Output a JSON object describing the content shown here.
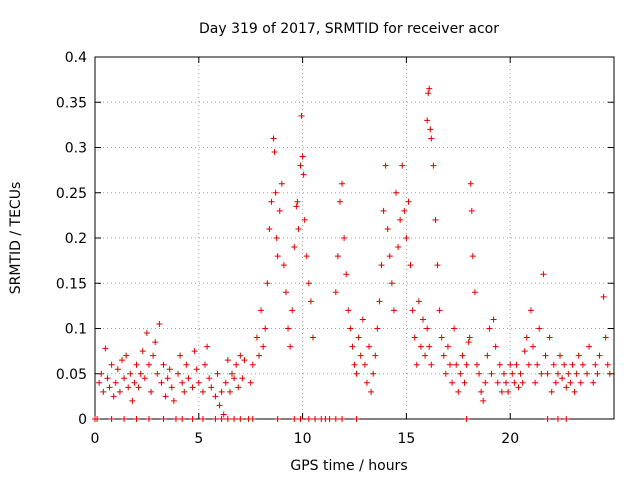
{
  "chart_data": {
    "type": "scatter",
    "title": "Day 319 of 2017, SRMTID for receiver acor",
    "xlabel": "GPS time / hours",
    "ylabel": "SRMTID / TECUs",
    "xlim": [
      0,
      25
    ],
    "ylim": [
      0,
      0.4
    ],
    "x_ticks": [
      0,
      5,
      10,
      15,
      20
    ],
    "x_tick_labels": [
      "0",
      "5",
      "10",
      "15",
      "20"
    ],
    "y_ticks": [
      0,
      0.05,
      0.1,
      0.15,
      0.2,
      0.25,
      0.3,
      0.35,
      0.4
    ],
    "y_tick_labels": [
      "0",
      "0.05",
      "0.1",
      "0.15",
      "0.2",
      "0.25",
      "0.3",
      "0.35",
      "0.4"
    ],
    "grid": true,
    "marker": "+",
    "series_color": "#e00000",
    "series": [
      {
        "name": "SRMTID",
        "points": [
          [
            0.0,
            0.0
          ],
          [
            0.2,
            0.04
          ],
          [
            0.3,
            0.05
          ],
          [
            0.4,
            0.03
          ],
          [
            0.5,
            0.078
          ],
          [
            0.6,
            0.045
          ],
          [
            0.7,
            0.035
          ],
          [
            0.8,
            0.06
          ],
          [
            0.9,
            0.025
          ],
          [
            1.0,
            0.04
          ],
          [
            1.1,
            0.055
          ],
          [
            1.2,
            0.03
          ],
          [
            1.3,
            0.065
          ],
          [
            1.4,
            0.045
          ],
          [
            1.5,
            0.07
          ],
          [
            1.6,
            0.035
          ],
          [
            1.7,
            0.05
          ],
          [
            1.8,
            0.02
          ],
          [
            1.9,
            0.04
          ],
          [
            2.0,
            0.06
          ],
          [
            2.1,
            0.035
          ],
          [
            2.2,
            0.05
          ],
          [
            2.3,
            0.075
          ],
          [
            2.4,
            0.045
          ],
          [
            2.5,
            0.095
          ],
          [
            2.6,
            0.06
          ],
          [
            2.7,
            0.03
          ],
          [
            2.8,
            0.07
          ],
          [
            2.9,
            0.085
          ],
          [
            3.0,
            0.05
          ],
          [
            3.1,
            0.105
          ],
          [
            3.2,
            0.04
          ],
          [
            3.3,
            0.06
          ],
          [
            3.4,
            0.025
          ],
          [
            3.5,
            0.045
          ],
          [
            3.6,
            0.055
          ],
          [
            3.7,
            0.035
          ],
          [
            3.8,
            0.02
          ],
          [
            4.0,
            0.05
          ],
          [
            4.1,
            0.07
          ],
          [
            4.2,
            0.04
          ],
          [
            4.3,
            0.03
          ],
          [
            4.4,
            0.06
          ],
          [
            4.5,
            0.045
          ],
          [
            4.7,
            0.035
          ],
          [
            4.8,
            0.075
          ],
          [
            4.9,
            0.055
          ],
          [
            5.0,
            0.04
          ],
          [
            5.2,
            0.03
          ],
          [
            5.3,
            0.06
          ],
          [
            5.4,
            0.08
          ],
          [
            5.5,
            0.045
          ],
          [
            5.6,
            0.035
          ],
          [
            5.8,
            0.025
          ],
          [
            5.9,
            0.05
          ],
          [
            6.0,
            0.015
          ],
          [
            6.1,
            0.03
          ],
          [
            6.2,
            0.005
          ],
          [
            6.3,
            0.04
          ],
          [
            6.4,
            0.065
          ],
          [
            6.5,
            0.03
          ],
          [
            6.6,
            0.05
          ],
          [
            6.7,
            0.045
          ],
          [
            6.8,
            0.06
          ],
          [
            6.9,
            0.035
          ],
          [
            7.0,
            0.07
          ],
          [
            7.1,
            0.045
          ],
          [
            7.2,
            0.065
          ],
          [
            7.5,
            0.04
          ],
          [
            7.6,
            0.06
          ],
          [
            7.8,
            0.09
          ],
          [
            7.9,
            0.07
          ],
          [
            8.0,
            0.12
          ],
          [
            8.1,
            0.08
          ],
          [
            8.2,
            0.1
          ],
          [
            8.3,
            0.15
          ],
          [
            8.4,
            0.21
          ],
          [
            8.5,
            0.24
          ],
          [
            8.6,
            0.31
          ],
          [
            8.65,
            0.295
          ],
          [
            8.7,
            0.25
          ],
          [
            8.75,
            0.2
          ],
          [
            8.8,
            0.18
          ],
          [
            8.9,
            0.23
          ],
          [
            9.0,
            0.26
          ],
          [
            9.1,
            0.17
          ],
          [
            9.2,
            0.14
          ],
          [
            9.3,
            0.1
          ],
          [
            9.4,
            0.08
          ],
          [
            9.5,
            0.12
          ],
          [
            9.6,
            0.19
          ],
          [
            9.7,
            0.235
          ],
          [
            9.75,
            0.24
          ],
          [
            9.8,
            0.21
          ],
          [
            9.9,
            0.28
          ],
          [
            9.95,
            0.335
          ],
          [
            10.0,
            0.29
          ],
          [
            10.05,
            0.27
          ],
          [
            10.1,
            0.22
          ],
          [
            10.2,
            0.18
          ],
          [
            10.3,
            0.15
          ],
          [
            10.4,
            0.13
          ],
          [
            10.5,
            0.09
          ],
          [
            11.6,
            0.14
          ],
          [
            11.7,
            0.18
          ],
          [
            11.8,
            0.24
          ],
          [
            11.9,
            0.26
          ],
          [
            12.0,
            0.2
          ],
          [
            12.1,
            0.16
          ],
          [
            12.2,
            0.12
          ],
          [
            12.3,
            0.1
          ],
          [
            12.4,
            0.08
          ],
          [
            12.5,
            0.06
          ],
          [
            12.6,
            0.05
          ],
          [
            12.7,
            0.09
          ],
          [
            12.8,
            0.07
          ],
          [
            12.9,
            0.11
          ],
          [
            13.0,
            0.06
          ],
          [
            13.1,
            0.04
          ],
          [
            13.2,
            0.08
          ],
          [
            13.3,
            0.03
          ],
          [
            13.4,
            0.05
          ],
          [
            13.5,
            0.07
          ],
          [
            13.6,
            0.1
          ],
          [
            13.7,
            0.13
          ],
          [
            13.8,
            0.17
          ],
          [
            13.9,
            0.23
          ],
          [
            14.0,
            0.28
          ],
          [
            14.1,
            0.21
          ],
          [
            14.2,
            0.18
          ],
          [
            14.3,
            0.15
          ],
          [
            14.4,
            0.12
          ],
          [
            14.5,
            0.25
          ],
          [
            14.6,
            0.19
          ],
          [
            14.7,
            0.22
          ],
          [
            14.8,
            0.28
          ],
          [
            14.9,
            0.23
          ],
          [
            15.0,
            0.2
          ],
          [
            15.1,
            0.24
          ],
          [
            15.2,
            0.17
          ],
          [
            15.3,
            0.12
          ],
          [
            15.4,
            0.09
          ],
          [
            15.5,
            0.06
          ],
          [
            15.6,
            0.13
          ],
          [
            15.7,
            0.08
          ],
          [
            15.8,
            0.11
          ],
          [
            15.9,
            0.07
          ],
          [
            16.0,
            0.1
          ],
          [
            16.1,
            0.08
          ],
          [
            16.2,
            0.06
          ],
          [
            16.0,
            0.33
          ],
          [
            16.05,
            0.36
          ],
          [
            16.1,
            0.365
          ],
          [
            16.15,
            0.32
          ],
          [
            16.2,
            0.31
          ],
          [
            16.3,
            0.28
          ],
          [
            16.4,
            0.22
          ],
          [
            16.5,
            0.17
          ],
          [
            16.6,
            0.12
          ],
          [
            16.7,
            0.09
          ],
          [
            16.8,
            0.07
          ],
          [
            16.9,
            0.05
          ],
          [
            17.0,
            0.08
          ],
          [
            17.1,
            0.06
          ],
          [
            17.2,
            0.04
          ],
          [
            17.3,
            0.1
          ],
          [
            17.4,
            0.06
          ],
          [
            17.5,
            0.03
          ],
          [
            17.6,
            0.05
          ],
          [
            17.7,
            0.07
          ],
          [
            17.8,
            0.04
          ],
          [
            17.9,
            0.06
          ],
          [
            18.0,
            0.085
          ],
          [
            18.05,
            0.09
          ],
          [
            18.1,
            0.26
          ],
          [
            18.15,
            0.23
          ],
          [
            18.2,
            0.18
          ],
          [
            18.3,
            0.14
          ],
          [
            18.4,
            0.06
          ],
          [
            18.5,
            0.05
          ],
          [
            18.6,
            0.03
          ],
          [
            18.7,
            0.02
          ],
          [
            18.8,
            0.04
          ],
          [
            18.9,
            0.07
          ],
          [
            19.0,
            0.1
          ],
          [
            19.1,
            0.05
          ],
          [
            19.2,
            0.11
          ],
          [
            19.3,
            0.08
          ],
          [
            19.4,
            0.04
          ],
          [
            19.5,
            0.06
          ],
          [
            19.6,
            0.03
          ],
          [
            19.7,
            0.05
          ],
          [
            19.8,
            0.04
          ],
          [
            19.9,
            0.03
          ],
          [
            20.0,
            0.06
          ],
          [
            20.1,
            0.05
          ],
          [
            20.2,
            0.04
          ],
          [
            20.3,
            0.06
          ],
          [
            20.4,
            0.035
          ],
          [
            20.5,
            0.05
          ],
          [
            20.6,
            0.04
          ],
          [
            20.7,
            0.075
          ],
          [
            20.8,
            0.09
          ],
          [
            20.9,
            0.06
          ],
          [
            21.0,
            0.12
          ],
          [
            21.1,
            0.08
          ],
          [
            21.2,
            0.04
          ],
          [
            21.3,
            0.06
          ],
          [
            21.4,
            0.1
          ],
          [
            21.5,
            0.05
          ],
          [
            21.6,
            0.16
          ],
          [
            21.7,
            0.07
          ],
          [
            21.8,
            0.05
          ],
          [
            21.9,
            0.09
          ],
          [
            22.0,
            0.03
          ],
          [
            22.1,
            0.06
          ],
          [
            22.2,
            0.04
          ],
          [
            22.3,
            0.05
          ],
          [
            22.4,
            0.07
          ],
          [
            22.5,
            0.045
          ],
          [
            22.6,
            0.06
          ],
          [
            22.7,
            0.035
          ],
          [
            22.8,
            0.05
          ],
          [
            22.9,
            0.04
          ],
          [
            23.0,
            0.06
          ],
          [
            23.1,
            0.03
          ],
          [
            23.2,
            0.05
          ],
          [
            23.3,
            0.07
          ],
          [
            23.4,
            0.04
          ],
          [
            23.5,
            0.06
          ],
          [
            23.7,
            0.05
          ],
          [
            23.8,
            0.08
          ],
          [
            24.0,
            0.04
          ],
          [
            24.1,
            0.06
          ],
          [
            24.2,
            0.05
          ],
          [
            24.3,
            0.07
          ],
          [
            24.5,
            0.135
          ],
          [
            24.6,
            0.09
          ],
          [
            24.7,
            0.06
          ],
          [
            24.8,
            0.05
          ]
        ],
        "zero_points": [
          0.1,
          0.8,
          1.4,
          2.0,
          2.6,
          3.3,
          3.9,
          4.2,
          4.7,
          5.2,
          5.8,
          6.1,
          6.4,
          6.7,
          7.0,
          7.4,
          7.6,
          8.8,
          9.6,
          9.9,
          10.3,
          10.6,
          10.9,
          11.1,
          11.3,
          11.6,
          11.9,
          12.6,
          17.9,
          21.8,
          22.3,
          22.7
        ]
      }
    ]
  }
}
